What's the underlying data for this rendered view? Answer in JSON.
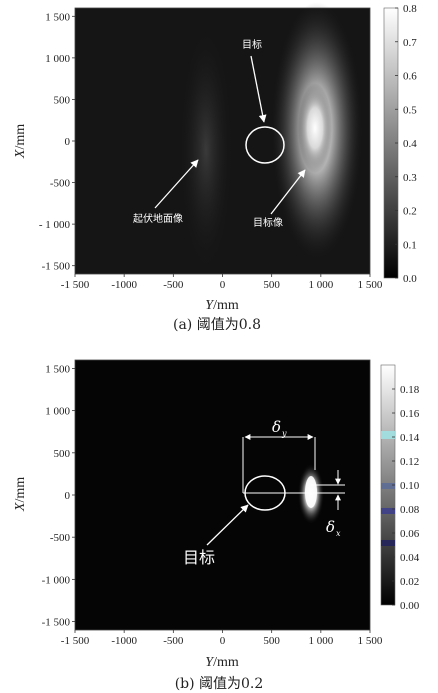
{
  "chart_data": [
    {
      "type": "heatmap",
      "caption": "(a) 阈值为0.8",
      "xlabel": "Y/mm",
      "ylabel": "X/mm",
      "xlim": [
        -1500,
        1500
      ],
      "ylim": [
        -1600,
        1600
      ],
      "x_ticks": [
        -1500,
        -1000,
        -500,
        0,
        500,
        1000,
        1500
      ],
      "x_tick_labels": [
        "-1 500",
        "-1000",
        "-500",
        "0",
        "500",
        "1 000",
        "1 500"
      ],
      "y_ticks": [
        1500,
        1000,
        500,
        0,
        -500,
        -1000,
        -1500
      ],
      "y_tick_labels": [
        "1 500",
        "1 000",
        "500",
        "0",
        "-500",
        "- 1 000",
        "-1 500"
      ],
      "colorbar": {
        "min": 0.0,
        "max": 0.8,
        "ticks": [
          0.8,
          0.7,
          0.6,
          0.5,
          0.4,
          0.3,
          0.2,
          0.1,
          0.0
        ],
        "tick_labels": [
          "0.8",
          "0.7",
          "0.6",
          "0.5",
          "0.4",
          "0.3",
          "0.2",
          "0.1",
          "0.0"
        ]
      },
      "features": {
        "target_circle": {
          "y": 450,
          "x": 0,
          "r": 230
        },
        "target_image_center": {
          "y": 1000,
          "x": 200
        }
      },
      "annotations": [
        {
          "text": "目标"
        },
        {
          "text": "起伏地面像"
        },
        {
          "text": "目标像"
        }
      ]
    },
    {
      "type": "heatmap",
      "caption": "(b) 阈值为0.2",
      "xlabel": "Y/mm",
      "ylabel": "X/mm",
      "xlim": [
        -1500,
        1500
      ],
      "ylim": [
        -1600,
        1600
      ],
      "x_ticks": [
        -1500,
        -1000,
        -500,
        0,
        500,
        1000,
        1500
      ],
      "x_tick_labels": [
        "-1 500",
        "-1000",
        "-500",
        "0",
        "500",
        "1 000",
        "1 500"
      ],
      "y_ticks": [
        1500,
        1000,
        500,
        0,
        -500,
        -1000,
        -1500
      ],
      "y_tick_labels": [
        "1 500",
        "1 000",
        "500",
        "0",
        "-500",
        "-1 000",
        "-1 500"
      ],
      "colorbar": {
        "min": 0.0,
        "max": 0.2,
        "ticks": [
          0.18,
          0.16,
          0.14,
          0.12,
          0.1,
          0.08,
          0.06,
          0.04,
          0.02,
          0.0
        ],
        "tick_labels": [
          "0.18",
          "0.16",
          "0.14",
          "0.12",
          "0.10",
          "0.08",
          "0.06",
          "0.04",
          "0.02",
          "0.00"
        ]
      },
      "features": {
        "target_circle": {
          "y": 450,
          "x": 0,
          "r": 230
        },
        "target_image_center": {
          "y": 1050,
          "x": 0
        }
      },
      "annotations": [
        {
          "text": "目标"
        }
      ],
      "symbols": {
        "delta_y": "δ",
        "delta_x": "δ",
        "sub_y": "y",
        "sub_x": "x"
      }
    }
  ]
}
